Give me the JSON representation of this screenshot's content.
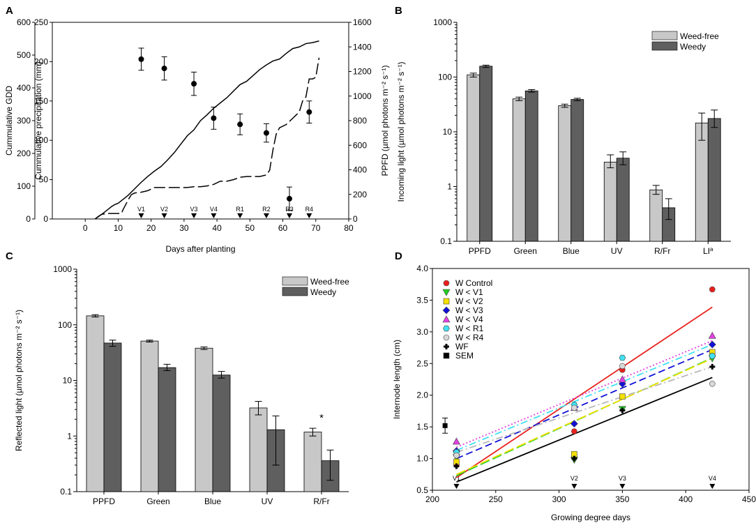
{
  "panel_letters": [
    "A",
    "B",
    "C",
    "D"
  ],
  "chart_data": [
    {
      "id": "A",
      "type": "line",
      "xlabel": "Days after planting",
      "ylabel_left_outer": "Cummulative GDD",
      "ylabel_left_inner": "Cummulative precipitation (mm)",
      "ylabel_right": "PPFD (µmol photons m⁻² s⁻¹)",
      "xlim": [
        -10,
        80
      ],
      "xticks": [
        "0",
        "10",
        "20",
        "30",
        "40",
        "50",
        "60",
        "70",
        "80"
      ],
      "xtick_values": [
        0,
        10,
        20,
        30,
        40,
        50,
        60,
        70,
        80
      ],
      "gdd_ticks": [
        "0",
        "100",
        "200",
        "300",
        "400",
        "500",
        "600"
      ],
      "gdd_tick_values": [
        0,
        100,
        200,
        300,
        400,
        500,
        600
      ],
      "precip_ticks": [
        "0",
        "50",
        "100",
        "150",
        "200",
        "250"
      ],
      "precip_tick_values": [
        0,
        50,
        100,
        150,
        200,
        250
      ],
      "ppfd_ticks": [
        "0",
        "200",
        "400",
        "600",
        "800",
        "1000",
        "1200",
        "1400",
        "1600"
      ],
      "ppfd_tick_values": [
        0,
        200,
        400,
        600,
        800,
        1000,
        1200,
        1400,
        1600
      ],
      "gdd_ylim": [
        0,
        600
      ],
      "precip_ylim": [
        0,
        250
      ],
      "ppfd_ylim": [
        0,
        1600
      ],
      "series": [
        {
          "name": "Cumulative GDD",
          "style": "solid",
          "x": [
            3,
            4,
            5,
            6,
            7,
            8,
            9,
            10,
            11,
            12,
            13,
            15,
            17,
            19,
            21,
            23,
            25,
            27,
            29,
            31,
            33,
            35,
            37,
            39,
            41,
            43,
            45,
            47,
            49,
            51,
            53,
            55,
            57,
            59,
            61,
            63,
            65,
            67,
            69,
            71
          ],
          "y": [
            0,
            8,
            14,
            22,
            30,
            38,
            44,
            48,
            56,
            64,
            72,
            92,
            112,
            130,
            146,
            160,
            180,
            202,
            228,
            254,
            272,
            300,
            318,
            338,
            354,
            370,
            390,
            410,
            420,
            438,
            456,
            470,
            482,
            488,
            505,
            520,
            525,
            535,
            538,
            543
          ]
        },
        {
          "name": "Cumulative precipitation (mm)",
          "style": "dashed",
          "x": [
            3,
            4,
            5,
            7,
            9,
            11,
            11.5,
            12,
            13,
            14,
            15,
            17,
            19,
            21,
            23,
            25,
            27,
            29,
            31,
            33,
            35,
            37,
            39,
            41,
            43,
            45,
            47,
            49,
            51,
            53,
            55,
            56,
            57,
            58,
            59,
            61,
            63,
            64,
            65,
            66,
            67,
            68,
            69,
            70,
            71
          ],
          "y": [
            0,
            3,
            6,
            7,
            7,
            7,
            12,
            16,
            24,
            31,
            33,
            34,
            36,
            40,
            40,
            40,
            40,
            40,
            40,
            41,
            41,
            42,
            44,
            48,
            48,
            50,
            53,
            54,
            54,
            54,
            56,
            62,
            88,
            108,
            116,
            120,
            128,
            132,
            136,
            150,
            155,
            178,
            178,
            180,
            205
          ]
        },
        {
          "name": "PPFD",
          "style": "points",
          "x": [
            17,
            24,
            33,
            39,
            47,
            55,
            62,
            68
          ],
          "y": [
            1300,
            1225,
            1100,
            820,
            770,
            700,
            165,
            870
          ],
          "err": [
            90,
            95,
            95,
            90,
            85,
            75,
            95,
            90
          ]
        }
      ],
      "stage_markers": [
        {
          "label": "V1",
          "x": 17
        },
        {
          "label": "V2",
          "x": 24
        },
        {
          "label": "V3",
          "x": 33
        },
        {
          "label": "V4",
          "x": 39
        },
        {
          "label": "R1",
          "x": 47
        },
        {
          "label": "R2",
          "x": 55
        },
        {
          "label": "R3",
          "x": 62
        },
        {
          "label": "R4",
          "x": 68
        }
      ]
    },
    {
      "id": "B",
      "type": "bar",
      "scale": "log",
      "ylabel": "Incoming light (µmol photons m⁻² s⁻¹)",
      "ylim": [
        0.1,
        1000
      ],
      "yticks": [
        "0.1",
        "1",
        "10",
        "100",
        "1000"
      ],
      "ytick_values": [
        0.1,
        1,
        10,
        100,
        1000
      ],
      "categories": [
        "PPFD",
        "Green",
        "Blue",
        "UV",
        "R/Fr",
        "LI"
      ],
      "category_superscript": [
        "",
        "",
        "",
        "",
        "",
        "a"
      ],
      "legend": [
        "Weed-free",
        "Weedy"
      ],
      "series": [
        {
          "name": "Weed-free",
          "color": "#c8c8c8",
          "values": [
            110,
            40,
            30,
            2.8,
            0.87,
            14.5
          ],
          "err_low": [
            100,
            37,
            28,
            2.2,
            0.72,
            7
          ],
          "err_high": [
            118,
            43,
            32,
            3.8,
            1.05,
            22
          ]
        },
        {
          "name": "Weedy",
          "color": "#5f5f5f",
          "values": [
            158,
            56,
            39,
            3.3,
            0.41,
            17.5
          ],
          "err_low": [
            150,
            53,
            37,
            2.5,
            0.25,
            12
          ],
          "err_high": [
            165,
            59,
            41,
            4.3,
            0.6,
            25
          ]
        }
      ]
    },
    {
      "id": "C",
      "type": "bar",
      "scale": "log",
      "ylabel": "Reflected light (µmol photons m⁻² s⁻¹)",
      "ylim": [
        0.1,
        1000
      ],
      "yticks": [
        "0.1",
        "1",
        "10",
        "100",
        "1000"
      ],
      "ytick_values": [
        0.1,
        1,
        10,
        100,
        1000
      ],
      "categories": [
        "PPFD",
        "Green",
        "Blue",
        "UV",
        "R/Fr"
      ],
      "legend": [
        "Weed-free",
        "Weedy"
      ],
      "annotation": "*",
      "annotation_category": "R/Fr",
      "series": [
        {
          "name": "Weed-free",
          "color": "#c8c8c8",
          "values": [
            145,
            51,
            38,
            3.2,
            1.18
          ],
          "err_low": [
            138,
            49,
            36,
            2.4,
            1.0
          ],
          "err_high": [
            152,
            53,
            40,
            4.2,
            1.38
          ]
        },
        {
          "name": "Weedy",
          "color": "#5f5f5f",
          "values": [
            47,
            17,
            12.5,
            1.3,
            0.36
          ],
          "err_low": [
            41,
            15,
            11,
            0.3,
            0.16
          ],
          "err_high": [
            53,
            19.5,
            14.5,
            2.3,
            0.56
          ]
        }
      ]
    },
    {
      "id": "D",
      "type": "scatter",
      "xlabel": "Growing degree days",
      "ylabel": "Internode length (cm)",
      "xlim": [
        200,
        450
      ],
      "ylim": [
        0.5,
        4.0
      ],
      "xticks": [
        "200",
        "250",
        "300",
        "350",
        "400",
        "450"
      ],
      "xtick_values": [
        200,
        250,
        300,
        350,
        400,
        450
      ],
      "yticks": [
        "0.5",
        "1.0",
        "1.5",
        "2.0",
        "2.5",
        "3.0",
        "3.5",
        "4.0"
      ],
      "ytick_values": [
        0.5,
        1.0,
        1.5,
        2.0,
        2.5,
        3.0,
        3.5,
        4.0
      ],
      "x": [
        219,
        312,
        350,
        421
      ],
      "stage_markers": [
        {
          "label": "V1",
          "x": 219
        },
        {
          "label": "V2",
          "x": 312
        },
        {
          "label": "V3",
          "x": 350
        },
        {
          "label": "V4",
          "x": 421
        }
      ],
      "sem": {
        "label": "SEM",
        "x": 210,
        "y": 1.52,
        "err": 0.12
      },
      "series": [
        {
          "name": "W Control",
          "marker": "circle",
          "color": "#e8201c",
          "line": "solid",
          "y": [
            0.9,
            1.43,
            2.4,
            3.67
          ],
          "fit": [
            0.7,
            3.39
          ]
        },
        {
          "name": "W < V1",
          "marker": "triangle-down",
          "color": "#22cc22",
          "line": "longdash",
          "y": [
            1.02,
            0.98,
            1.78,
            2.58
          ],
          "fit": [
            0.73,
            2.59
          ]
        },
        {
          "name": "W < V2",
          "marker": "square",
          "color": "#f5e000",
          "line": "longdash",
          "y": [
            0.95,
            1.07,
            1.98,
            2.68
          ],
          "fit": [
            0.75,
            2.58
          ]
        },
        {
          "name": "W < V3",
          "marker": "diamond",
          "color": "#1010d8",
          "line": "dash",
          "y": [
            1.12,
            1.55,
            2.18,
            2.8
          ],
          "fit": [
            1.0,
            2.72
          ]
        },
        {
          "name": "W < V4",
          "marker": "triangle-up",
          "color": "#e040e0",
          "line": "dot",
          "y": [
            1.27,
            1.8,
            2.25,
            2.94
          ],
          "fit": [
            1.18,
            2.86
          ]
        },
        {
          "name": "W < R1",
          "marker": "hexagon",
          "color": "#40e0f0",
          "line": "dashdot",
          "y": [
            1.1,
            1.85,
            2.59,
            2.62
          ],
          "fit": [
            1.13,
            2.8
          ]
        },
        {
          "name": "W < R4",
          "marker": "circle",
          "color": "#d8d8d8",
          "line": "dashdot",
          "y": [
            1.05,
            1.8,
            2.46,
            2.18
          ],
          "fit": [
            1.1,
            2.45
          ]
        },
        {
          "name": "WF",
          "marker": "plus",
          "color": "#000000",
          "line": "solid",
          "y": [
            0.88,
            1.0,
            1.76,
            2.45
          ],
          "fit": [
            0.63,
            2.28
          ]
        },
        {
          "name": "SEM",
          "marker": "square",
          "color": "#000000",
          "line": "none",
          "y": []
        }
      ]
    }
  ]
}
